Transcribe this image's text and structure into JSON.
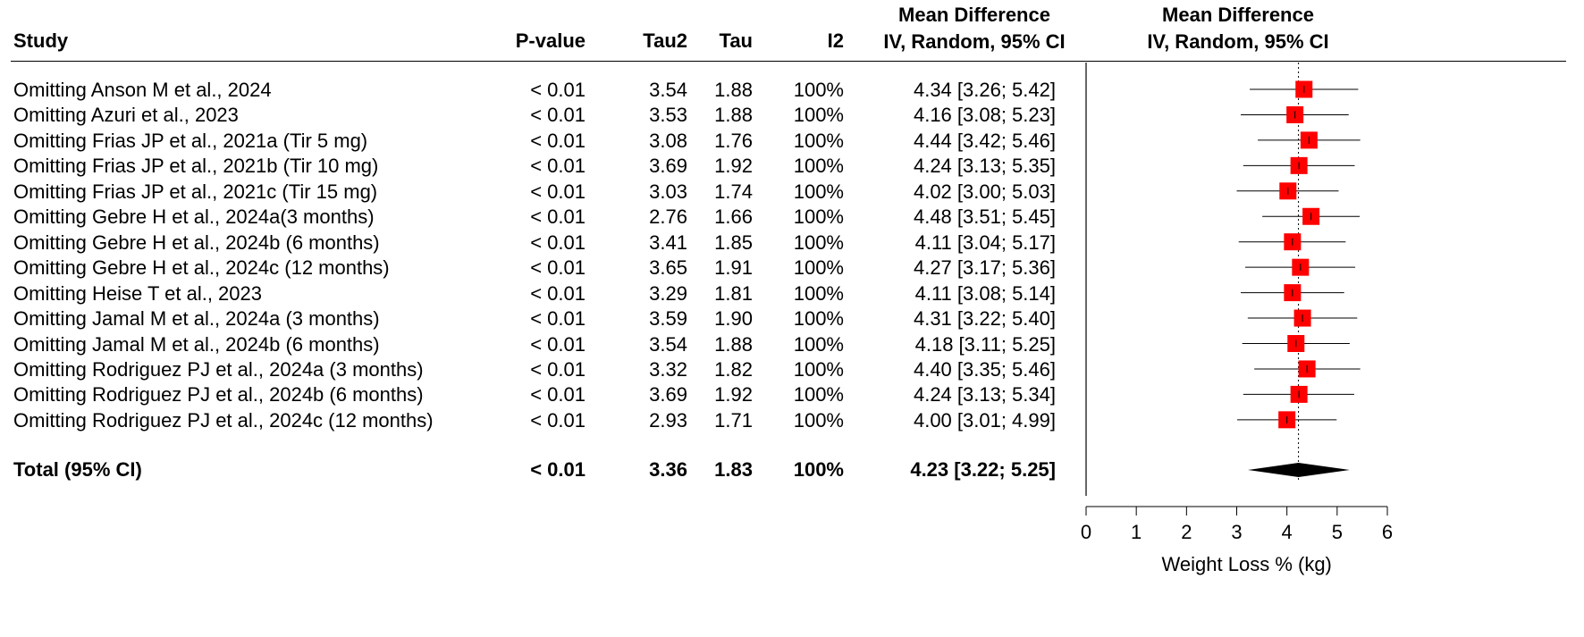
{
  "headers": {
    "study": "Study",
    "pvalue": "P-value",
    "tau2": "Tau2",
    "tau": "Tau",
    "i2": "I2",
    "md_line1": "Mean Difference",
    "md_line2": "IV, Random, 95% CI",
    "plot_line1": "Mean Difference",
    "plot_line2": "IV, Random, 95% CI"
  },
  "rows": [
    {
      "study": "Omitting Anson M et al., 2024",
      "p": "< 0.01",
      "tau2": "3.54",
      "tau": "1.88",
      "i2": "100%",
      "ci_text": "4.34 [3.26; 5.42]"
    },
    {
      "study": "Omitting Azuri et al., 2023",
      "p": "< 0.01",
      "tau2": "3.53",
      "tau": "1.88",
      "i2": "100%",
      "ci_text": "4.16 [3.08; 5.23]"
    },
    {
      "study": "Omitting Frias JP et al., 2021a (Tir 5 mg)",
      "p": "< 0.01",
      "tau2": "3.08",
      "tau": "1.76",
      "i2": "100%",
      "ci_text": "4.44 [3.42; 5.46]"
    },
    {
      "study": "Omitting Frias JP et al., 2021b (Tir 10 mg)",
      "p": "< 0.01",
      "tau2": "3.69",
      "tau": "1.92",
      "i2": "100%",
      "ci_text": "4.24 [3.13; 5.35]"
    },
    {
      "study": "Omitting Frias JP et al., 2021c (Tir 15 mg)",
      "p": "< 0.01",
      "tau2": "3.03",
      "tau": "1.74",
      "i2": "100%",
      "ci_text": "4.02 [3.00; 5.03]"
    },
    {
      "study": "Omitting  Gebre H et al., 2024a(3 months)",
      "p": "< 0.01",
      "tau2": "2.76",
      "tau": "1.66",
      "i2": "100%",
      "ci_text": "4.48 [3.51; 5.45]"
    },
    {
      "study": "Omitting  Gebre H et al., 2024b (6 months)",
      "p": "< 0.01",
      "tau2": "3.41",
      "tau": "1.85",
      "i2": "100%",
      "ci_text": "4.11 [3.04; 5.17]"
    },
    {
      "study": "Omitting  Gebre H et al., 2024c (12 months)",
      "p": "< 0.01",
      "tau2": "3.65",
      "tau": "1.91",
      "i2": "100%",
      "ci_text": "4.27 [3.17; 5.36]"
    },
    {
      "study": "Omitting Heise T et al., 2023",
      "p": "< 0.01",
      "tau2": "3.29",
      "tau": "1.81",
      "i2": "100%",
      "ci_text": "4.11 [3.08; 5.14]"
    },
    {
      "study": "Omitting Jamal M et al., 2024a (3 months)",
      "p": "< 0.01",
      "tau2": "3.59",
      "tau": "1.90",
      "i2": "100%",
      "ci_text": "4.31 [3.22; 5.40]"
    },
    {
      "study": "Omitting Jamal M et al., 2024b (6 months)",
      "p": "< 0.01",
      "tau2": "3.54",
      "tau": "1.88",
      "i2": "100%",
      "ci_text": "4.18 [3.11; 5.25]"
    },
    {
      "study": "Omitting  Rodriguez PJ et al., 2024a (3 months)",
      "p": "< 0.01",
      "tau2": "3.32",
      "tau": "1.82",
      "i2": "100%",
      "ci_text": "4.40 [3.35; 5.46]"
    },
    {
      "study": "Omitting  Rodriguez PJ et al., 2024b (6 months)",
      "p": "< 0.01",
      "tau2": "3.69",
      "tau": "1.92",
      "i2": "100%",
      "ci_text": "4.24 [3.13; 5.34]"
    },
    {
      "study": "Omitting  Rodriguez PJ et al., 2024c (12 months)",
      "p": "< 0.01",
      "tau2": "2.93",
      "tau": "1.71",
      "i2": "100%",
      "ci_text": "4.00 [3.01; 4.99]"
    }
  ],
  "total": {
    "study": "Total (95% CI)",
    "p": "< 0.01",
    "tau2": "3.36",
    "tau": "1.83",
    "i2": "100%",
    "ci_text": "4.23 [3.22; 5.25]"
  },
  "chart_data": {
    "type": "forest",
    "xlabel": "Weight Loss % (kg)",
    "xlim": [
      0,
      6
    ],
    "xticks": [
      0,
      1,
      2,
      3,
      4,
      5,
      6
    ],
    "reference_line": 4.23,
    "reference_line_style": "dotted",
    "marker_color": "#ff0000",
    "summary_color": "#000000",
    "studies": [
      {
        "md": 4.34,
        "lo": 3.26,
        "hi": 5.42
      },
      {
        "md": 4.16,
        "lo": 3.08,
        "hi": 5.23
      },
      {
        "md": 4.44,
        "lo": 3.42,
        "hi": 5.46
      },
      {
        "md": 4.24,
        "lo": 3.13,
        "hi": 5.35
      },
      {
        "md": 4.02,
        "lo": 3.0,
        "hi": 5.03
      },
      {
        "md": 4.48,
        "lo": 3.51,
        "hi": 5.45
      },
      {
        "md": 4.11,
        "lo": 3.04,
        "hi": 5.17
      },
      {
        "md": 4.27,
        "lo": 3.17,
        "hi": 5.36
      },
      {
        "md": 4.11,
        "lo": 3.08,
        "hi": 5.14
      },
      {
        "md": 4.31,
        "lo": 3.22,
        "hi": 5.4
      },
      {
        "md": 4.18,
        "lo": 3.11,
        "hi": 5.25
      },
      {
        "md": 4.4,
        "lo": 3.35,
        "hi": 5.46
      },
      {
        "md": 4.24,
        "lo": 3.13,
        "hi": 5.34
      },
      {
        "md": 4.0,
        "lo": 3.01,
        "hi": 4.99
      }
    ],
    "total": {
      "md": 4.23,
      "lo": 3.22,
      "hi": 5.25
    }
  }
}
